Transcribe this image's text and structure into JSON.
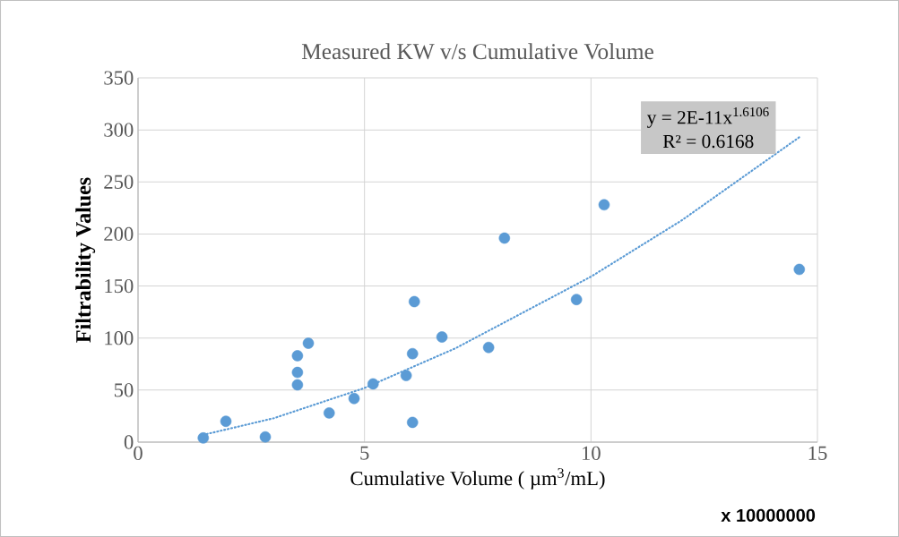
{
  "chart_data": {
    "type": "scatter",
    "title": "Measured KW v/s Cumulative Volume",
    "xlabel": "Cumulative Volume ( µm$^{3}$/mL)",
    "ylabel": "Filtrability Values",
    "xlim": [
      0,
      15
    ],
    "xticks": [
      0,
      5,
      10,
      15
    ],
    "ylim": [
      0,
      350
    ],
    "yticks": [
      0,
      50,
      100,
      150,
      200,
      250,
      300,
      350
    ],
    "grid": true,
    "series": [
      {
        "color": "#5b9bd5",
        "marker": "circle",
        "x": [
          1.44,
          1.94,
          2.81,
          3.52,
          3.52,
          3.52,
          3.76,
          4.22,
          4.77,
          5.19,
          5.92,
          6.06,
          6.06,
          6.1,
          6.71,
          7.74,
          8.09,
          9.68,
          10.29,
          14.6
        ],
        "values": [
          4,
          20,
          5,
          83,
          67,
          55,
          95,
          28,
          42,
          56,
          64,
          85,
          19,
          135,
          101,
          91,
          196,
          137,
          228,
          166
        ]
      },
      {
        "type": "line",
        "color": "#5b9bd5",
        "line_style": "dotted",
        "marker": "none",
        "x": [
          1.44,
          3,
          5,
          7,
          10,
          12,
          14.6
        ],
        "values": [
          7,
          23,
          52,
          90,
          159,
          213,
          293
        ]
      }
    ],
    "annotations": [
      "y = 2E-11x$^{1.6106}$",
      "R² = 0.6168",
      "x 10000000"
    ]
  }
}
